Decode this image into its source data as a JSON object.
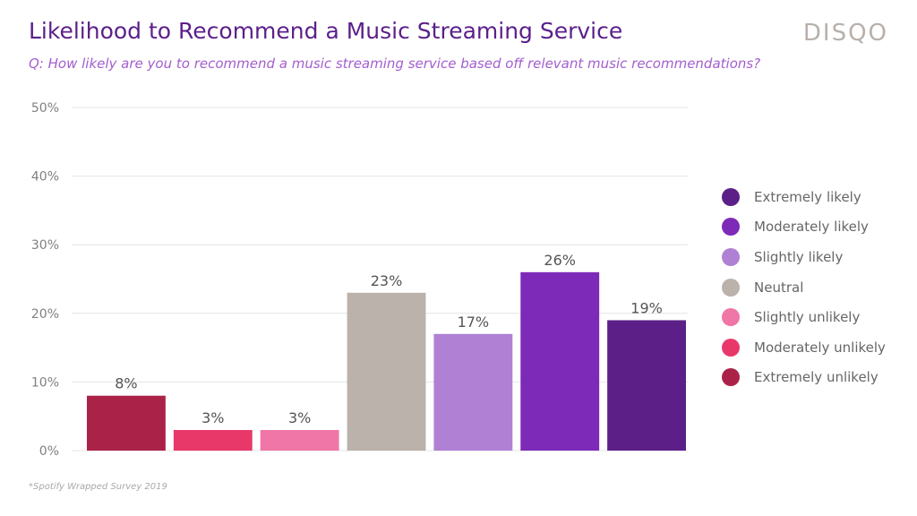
{
  "header": {
    "title": "Likelihood to Recommend a Music Streaming Service",
    "subtitle": "Q: How likely are you to recommend a music streaming service based off relevant music recommendations?",
    "brand": "DISQO"
  },
  "footnote": "*Spotify Wrapped Survey 2019",
  "chart_data": {
    "type": "bar",
    "title": "Likelihood to Recommend a Music Streaming Service",
    "xlabel": "",
    "ylabel": "",
    "ylim": [
      0,
      50
    ],
    "yticks": [
      0,
      10,
      20,
      30,
      40,
      50
    ],
    "ytick_labels": [
      "0%",
      "10%",
      "20%",
      "30%",
      "40%",
      "50%"
    ],
    "grid": true,
    "legend_position": "right",
    "categories": [
      "Extremely unlikely",
      "Moderately unlikely",
      "Slightly unlikely",
      "Neutral",
      "Slightly likely",
      "Moderately likely",
      "Extremely likely"
    ],
    "values": [
      8,
      3,
      3,
      23,
      17,
      26,
      19
    ],
    "value_labels": [
      "8%",
      "3%",
      "3%",
      "23%",
      "17%",
      "26%",
      "19%"
    ],
    "colors": [
      "#ab2249",
      "#e8386a",
      "#ef76a6",
      "#bab2ab",
      "#af80d4",
      "#7e2ab8",
      "#5c1f87"
    ]
  },
  "legend": {
    "items": [
      {
        "label": "Extremely likely",
        "color": "#5c1f87"
      },
      {
        "label": "Moderately likely",
        "color": "#7e2ab8"
      },
      {
        "label": "Slightly likely",
        "color": "#af80d4"
      },
      {
        "label": "Neutral",
        "color": "#bab2ab"
      },
      {
        "label": "Slightly unlikely",
        "color": "#ef76a6"
      },
      {
        "label": "Moderately unlikely",
        "color": "#e8386a"
      },
      {
        "label": "Extremely unlikely",
        "color": "#ab2249"
      }
    ]
  }
}
